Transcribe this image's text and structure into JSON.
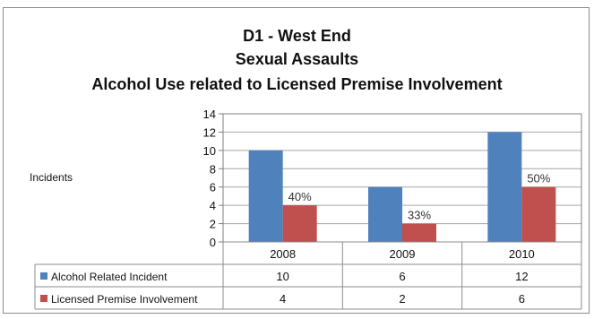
{
  "chart_data": {
    "type": "bar",
    "title_lines": [
      "D1 - West End",
      "Sexual Assaults",
      "Alcohol Use related to Licensed Premise Involvement"
    ],
    "xlabel": "",
    "ylabel": "Incidents",
    "categories": [
      "2008",
      "2009",
      "2010"
    ],
    "series": [
      {
        "name": "Alcohol Related Incident",
        "values": [
          10,
          6,
          12
        ],
        "color": "#4f81bd"
      },
      {
        "name": "Licensed Premise Involvement",
        "values": [
          4,
          2,
          6
        ],
        "color": "#c0504d"
      }
    ],
    "bar_labels": [
      "40%",
      "33%",
      "50%"
    ],
    "ylim": [
      0,
      14
    ],
    "yticks": [
      0,
      2,
      4,
      6,
      8,
      10,
      12,
      14
    ],
    "grid": true,
    "legend": "data-table"
  }
}
